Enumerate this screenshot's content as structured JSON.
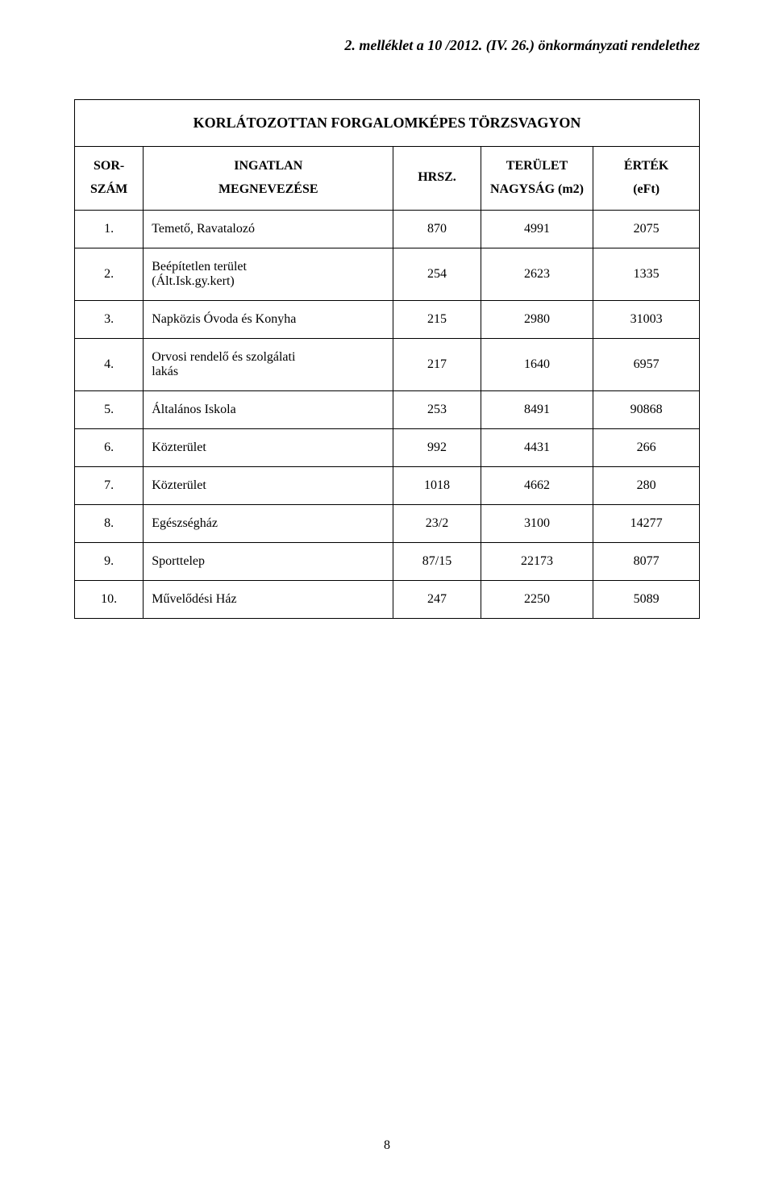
{
  "header_line": "2. melléklet a 10 /2012. (IV. 26.) önkormányzati rendelethez",
  "title": "KORLÁTOZOTTAN FORGALOMKÉPES TÖRZSVAGYON",
  "columns": {
    "sor_line1": "SOR-",
    "sor_line2": "SZÁM",
    "name_line1": "INGATLAN",
    "name_line2": "MEGNEVEZÉSE",
    "hrsz": "HRSZ.",
    "ter_line1": "TERÜLET",
    "ter_line2": "NAGYSÁG (m2)",
    "ert_line1": "ÉRTÉK",
    "ert_line2": "(eFt)"
  },
  "rows": [
    {
      "sor": "1.",
      "name": "Temető, Ravatalozó",
      "hrsz": "870",
      "ter": "4991",
      "ert": "2075"
    },
    {
      "sor": "2.",
      "name": "Beépítetlen terület\n(Ált.Isk.gy.kert)",
      "hrsz": "254",
      "ter": "2623",
      "ert": "1335"
    },
    {
      "sor": "3.",
      "name": "Napközis Óvoda és Konyha",
      "hrsz": "215",
      "ter": "2980",
      "ert": "31003"
    },
    {
      "sor": "4.",
      "name": "Orvosi rendelő és szolgálati\nlakás",
      "hrsz": "217",
      "ter": "1640",
      "ert": "6957"
    },
    {
      "sor": "5.",
      "name": "Általános Iskola",
      "hrsz": "253",
      "ter": "8491",
      "ert": "90868"
    },
    {
      "sor": "6.",
      "name": "Közterület",
      "hrsz": "992",
      "ter": "4431",
      "ert": "266"
    },
    {
      "sor": "7.",
      "name": "Közterület",
      "hrsz": "1018",
      "ter": "4662",
      "ert": "280"
    },
    {
      "sor": "8.",
      "name": "Egészségház",
      "hrsz": "23/2",
      "ter": "3100",
      "ert": "14277"
    },
    {
      "sor": "9.",
      "name": "Sporttelep",
      "hrsz": "87/15",
      "ter": "22173",
      "ert": "8077"
    },
    {
      "sor": "10.",
      "name": "Művelődési Ház",
      "hrsz": "247",
      "ter": "2250",
      "ert": "5089"
    }
  ],
  "page_number": "8"
}
